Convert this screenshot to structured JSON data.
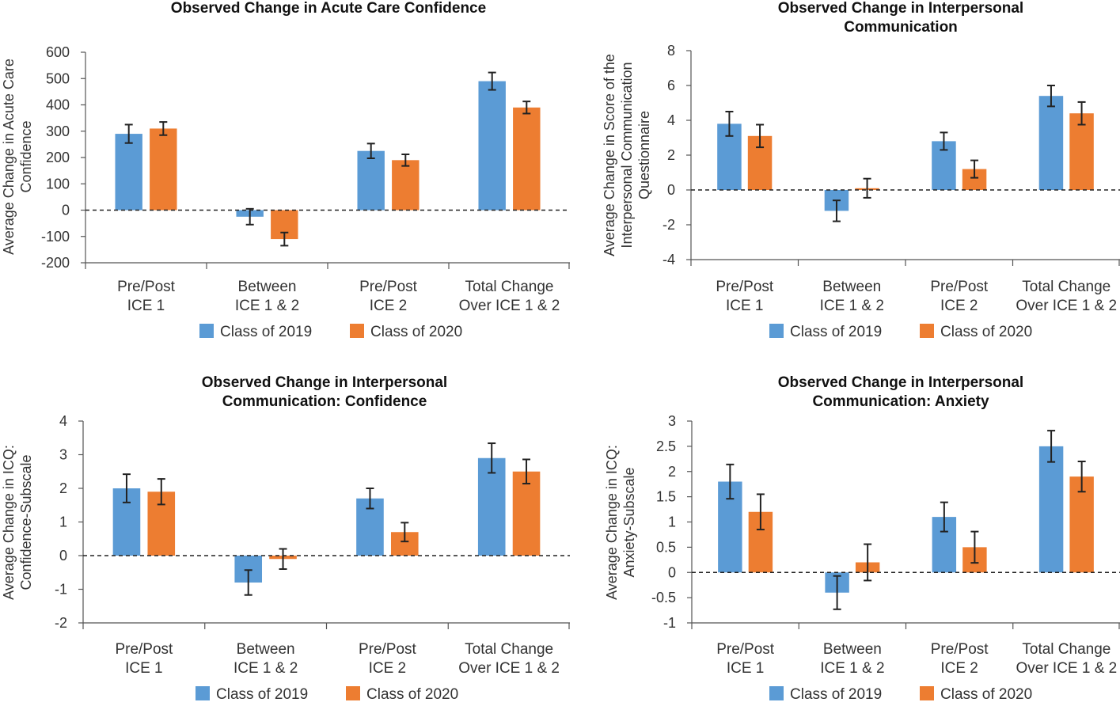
{
  "chart_data": [
    {
      "type": "bar",
      "title": [
        "Observed Change in Acute Care Confidence"
      ],
      "ylabel": [
        "Average Change in Acute Care",
        "Confidence"
      ],
      "xlabel": "",
      "ylim": [
        -200,
        600
      ],
      "yticks": [
        -200,
        -100,
        0,
        100,
        200,
        300,
        400,
        500,
        600
      ],
      "ytick_labels": [
        "-200",
        "-100",
        "0",
        "100",
        "200",
        "300",
        "400",
        "500",
        "600"
      ],
      "categories": [
        [
          "Pre/Post",
          "ICE 1"
        ],
        [
          "Between",
          "ICE 1 & 2"
        ],
        [
          "Pre/Post",
          "ICE 2"
        ],
        [
          "Total Change",
          "Over ICE 1 & 2"
        ]
      ],
      "series": [
        {
          "name": "Class of 2019",
          "color": "#5b9bd5",
          "values": [
            290,
            -25,
            225,
            490
          ],
          "error": [
            35,
            30,
            28,
            33
          ]
        },
        {
          "name": "Class of 2020",
          "color": "#ed7d31",
          "values": [
            310,
            -110,
            190,
            390
          ],
          "error": [
            25,
            25,
            22,
            23
          ]
        }
      ],
      "zero_line": "dashed",
      "grid": false,
      "legend_position": "bottom"
    },
    {
      "type": "bar",
      "title": [
        "Observed Change in Interpersonal",
        "Communication"
      ],
      "ylabel": [
        "Average Change in Score of the",
        "Interpersonal Communication",
        "Questionnaire"
      ],
      "xlabel": "",
      "ylim": [
        -4,
        8
      ],
      "yticks": [
        -4,
        -2,
        0,
        2,
        4,
        6,
        8
      ],
      "ytick_labels": [
        "-4",
        "-2",
        "0",
        "2",
        "4",
        "6",
        "8"
      ],
      "categories": [
        [
          "Pre/Post",
          "ICE 1"
        ],
        [
          "Between",
          "ICE 1 & 2"
        ],
        [
          "Pre/Post",
          "ICE 2"
        ],
        [
          "Total Change",
          "Over ICE 1 & 2"
        ]
      ],
      "series": [
        {
          "name": "Class of 2019",
          "color": "#5b9bd5",
          "values": [
            3.8,
            -1.2,
            2.8,
            5.4
          ],
          "error": [
            0.7,
            0.6,
            0.5,
            0.6
          ]
        },
        {
          "name": "Class of 2020",
          "color": "#ed7d31",
          "values": [
            3.1,
            0.1,
            1.2,
            4.4
          ],
          "error": [
            0.65,
            0.55,
            0.5,
            0.65
          ]
        }
      ],
      "zero_line": "dashed",
      "grid": false,
      "legend_position": "bottom"
    },
    {
      "type": "bar",
      "title": [
        "Observed Change in Interpersonal",
        "Communication: Confidence"
      ],
      "ylabel": [
        "Average Change in ICQ:",
        "Confidence-Subscale"
      ],
      "xlabel": "",
      "ylim": [
        -2,
        4
      ],
      "yticks": [
        -2,
        -1,
        0,
        1,
        2,
        3,
        4
      ],
      "ytick_labels": [
        "-2",
        "-1",
        "0",
        "1",
        "2",
        "3",
        "4"
      ],
      "categories": [
        [
          "Pre/Post",
          "ICE 1"
        ],
        [
          "Between",
          "ICE 1 & 2"
        ],
        [
          "Pre/Post",
          "ICE 2"
        ],
        [
          "Total Change",
          "Over ICE 1 & 2"
        ]
      ],
      "series": [
        {
          "name": "Class of 2019",
          "color": "#5b9bd5",
          "values": [
            2.0,
            -0.8,
            1.7,
            2.9
          ],
          "error": [
            0.42,
            0.37,
            0.3,
            0.44
          ]
        },
        {
          "name": "Class of 2020",
          "color": "#ed7d31",
          "values": [
            1.9,
            -0.1,
            0.7,
            2.5
          ],
          "error": [
            0.38,
            0.3,
            0.28,
            0.36
          ]
        }
      ],
      "zero_line": "dashed",
      "grid": false,
      "legend_position": "bottom"
    },
    {
      "type": "bar",
      "title": [
        "Observed Change in Interpersonal",
        "Communication: Anxiety"
      ],
      "ylabel": [
        "Average Change in ICQ:",
        "Anxiety-Subscale"
      ],
      "xlabel": "",
      "ylim": [
        -1,
        3
      ],
      "yticks": [
        -1,
        -0.5,
        0,
        0.5,
        1,
        1.5,
        2,
        2.5,
        3
      ],
      "ytick_labels": [
        "-1",
        "-0.5",
        "0",
        "0.5",
        "1",
        "1.5",
        "2",
        "2.5",
        "3"
      ],
      "categories": [
        [
          "Pre/Post",
          "ICE 1"
        ],
        [
          "Between",
          "ICE 1 & 2"
        ],
        [
          "Pre/Post",
          "ICE 2"
        ],
        [
          "Total Change",
          "Over ICE 1 & 2"
        ]
      ],
      "series": [
        {
          "name": "Class of 2019",
          "color": "#5b9bd5",
          "values": [
            1.8,
            -0.4,
            1.1,
            2.5
          ],
          "error": [
            0.34,
            0.33,
            0.29,
            0.31
          ]
        },
        {
          "name": "Class of 2020",
          "color": "#ed7d31",
          "values": [
            1.2,
            0.2,
            0.5,
            1.9
          ],
          "error": [
            0.35,
            0.36,
            0.31,
            0.3
          ]
        }
      ],
      "zero_line": "dashed",
      "grid": false,
      "legend_position": "bottom"
    }
  ]
}
